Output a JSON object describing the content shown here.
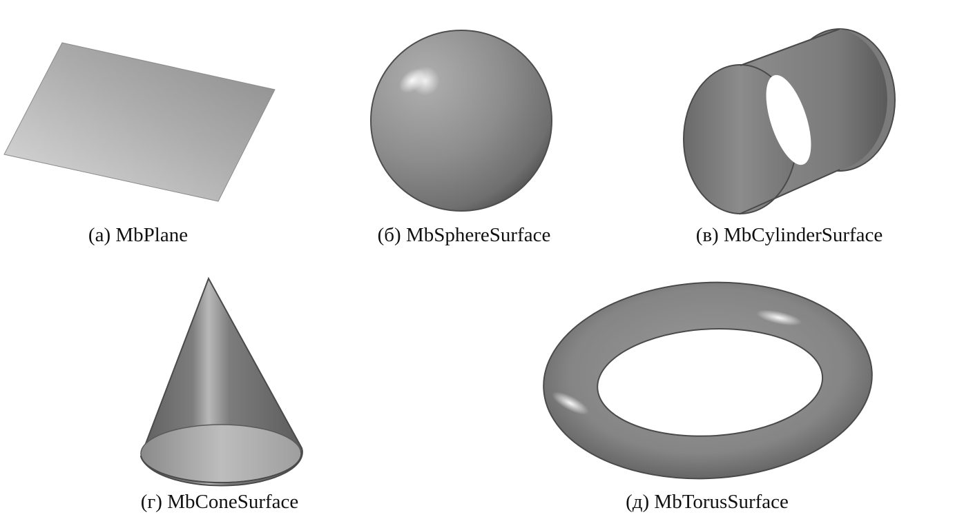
{
  "captions": {
    "plane": "(а) MbPlane",
    "sphere": "(б) MbSphereSurface",
    "cylinder": "(в) MbCylinderSurface",
    "cone": "(г) MbConeSurface",
    "torus": "(д) MbTorusSurface"
  },
  "colors": {
    "background": "#ffffff",
    "surface_light": "#d6d6d6",
    "surface_mid": "#8e8e8e",
    "surface_dark": "#5c5c5c",
    "outline": "#4a4a4a",
    "caption_text": "#111111"
  }
}
